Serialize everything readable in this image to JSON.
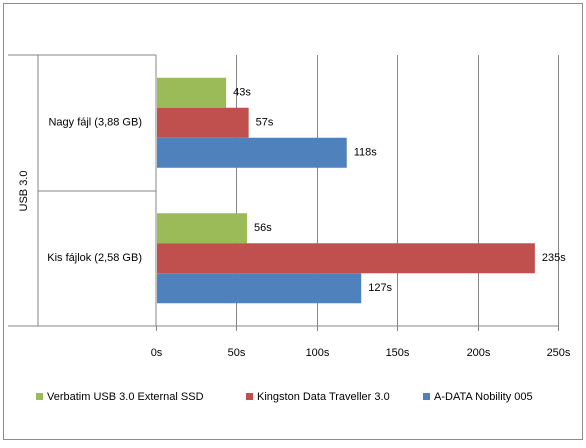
{
  "chart_data": {
    "type": "bar",
    "orientation": "horizontal",
    "group_label": "USB 3.0",
    "categories": [
      "Nagy fájl (3,88 GB)",
      "Kis fájlok (2,58 GB)"
    ],
    "series": [
      {
        "name": "Verbatim USB 3.0 External SSD",
        "color": "#9bbb59",
        "values": [
          43,
          56
        ],
        "labels": [
          "43s",
          "56s"
        ]
      },
      {
        "name": "Kingston Data Traveller 3.0",
        "color": "#c0504d",
        "values": [
          57,
          235
        ],
        "labels": [
          "57s",
          "235s"
        ]
      },
      {
        "name": "A-DATA Nobility 005",
        "color": "#4f81bd",
        "values": [
          118,
          127
        ],
        "labels": [
          "118s",
          "127s"
        ]
      }
    ],
    "xlim": [
      0,
      250
    ],
    "xticks": [
      0,
      50,
      100,
      150,
      200,
      250
    ],
    "xtick_labels": [
      "0s",
      "50s",
      "100s",
      "150s",
      "200s",
      "250s"
    ],
    "grid": true,
    "legend_position": "bottom"
  }
}
